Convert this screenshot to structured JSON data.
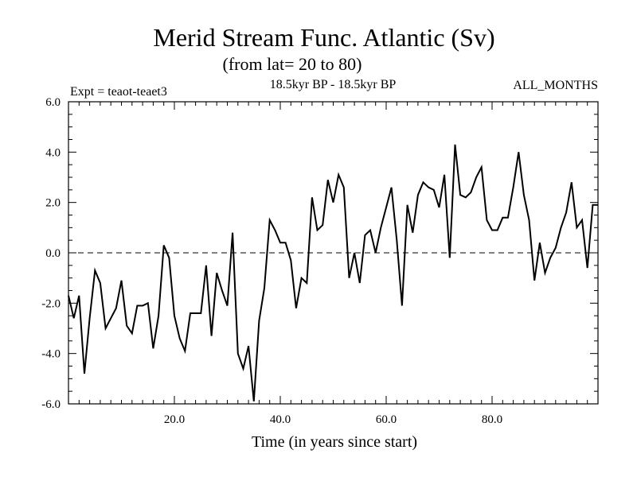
{
  "chart_data": {
    "type": "line",
    "title": "Merid Stream Func. Atlantic (Sv)",
    "subtitle": "(from lat= 20 to 80)",
    "header_left": "Expt = teaot-teaet3",
    "header_center": "18.5kyr BP - 18.5kyr BP",
    "header_right": "ALL_MONTHS",
    "xlabel": "Time (in years since start)",
    "ylabel": "",
    "xlim": [
      0,
      100
    ],
    "ylim": [
      -6,
      6
    ],
    "xticks": [
      20,
      40,
      60,
      80
    ],
    "xtick_labels": [
      "20.0",
      "40.0",
      "60.0",
      "80.0"
    ],
    "yticks": [
      -6,
      -4,
      -2,
      0,
      2,
      4,
      6
    ],
    "ytick_labels": [
      "-6.0",
      "-4.0",
      "-2.0",
      "0.0",
      "2.0",
      "4.0",
      "6.0"
    ],
    "zero_line": true,
    "series": [
      {
        "name": "Merid Stream Func",
        "x": [
          0,
          1,
          2,
          3,
          4,
          5,
          6,
          7,
          8,
          9,
          10,
          11,
          12,
          13,
          14,
          15,
          16,
          17,
          18,
          19,
          20,
          21,
          22,
          23,
          24,
          25,
          26,
          27,
          28,
          29,
          30,
          31,
          32,
          33,
          34,
          35,
          36,
          37,
          38,
          39,
          40,
          41,
          42,
          43,
          44,
          45,
          46,
          47,
          48,
          49,
          50,
          51,
          52,
          53,
          54,
          55,
          56,
          57,
          58,
          59,
          60,
          61,
          62,
          63,
          64,
          65,
          66,
          67,
          68,
          69,
          70,
          71,
          72,
          73,
          74,
          75,
          76,
          77,
          78,
          79,
          80,
          81,
          82,
          83,
          84,
          85,
          86,
          87,
          88,
          89,
          90,
          91,
          92,
          93,
          94,
          95,
          96,
          97,
          98,
          99,
          100
        ],
        "values": [
          -1.7,
          -2.6,
          -1.7,
          -4.8,
          -2.6,
          -0.7,
          -1.2,
          -3.0,
          -2.6,
          -2.2,
          -1.1,
          -2.9,
          -3.2,
          -2.1,
          -2.1,
          -2.0,
          -3.8,
          -2.5,
          0.3,
          -0.2,
          -2.5,
          -3.4,
          -3.9,
          -2.4,
          -2.4,
          -2.4,
          -0.5,
          -3.3,
          -0.8,
          -1.5,
          -2.1,
          0.8,
          -4.0,
          -4.6,
          -3.7,
          -5.9,
          -2.7,
          -1.4,
          1.3,
          0.9,
          0.4,
          0.4,
          -0.3,
          -2.2,
          -1.0,
          -1.2,
          2.2,
          0.9,
          1.1,
          2.9,
          2.0,
          3.1,
          2.6,
          -1.0,
          0.0,
          -1.2,
          0.7,
          0.9,
          0.0,
          1.0,
          1.8,
          2.6,
          0.5,
          -2.1,
          1.9,
          0.8,
          2.3,
          2.8,
          2.6,
          2.5,
          1.8,
          3.1,
          -0.2,
          4.3,
          2.3,
          2.2,
          2.4,
          3.0,
          3.4,
          1.3,
          0.9,
          0.9,
          1.4,
          1.4,
          2.6,
          4.0,
          2.3,
          1.3,
          -1.1,
          0.4,
          -0.8,
          -0.2,
          0.2,
          1.0,
          1.6,
          2.8,
          1.0,
          1.3,
          -0.6,
          1.9,
          1.9
        ]
      }
    ]
  }
}
